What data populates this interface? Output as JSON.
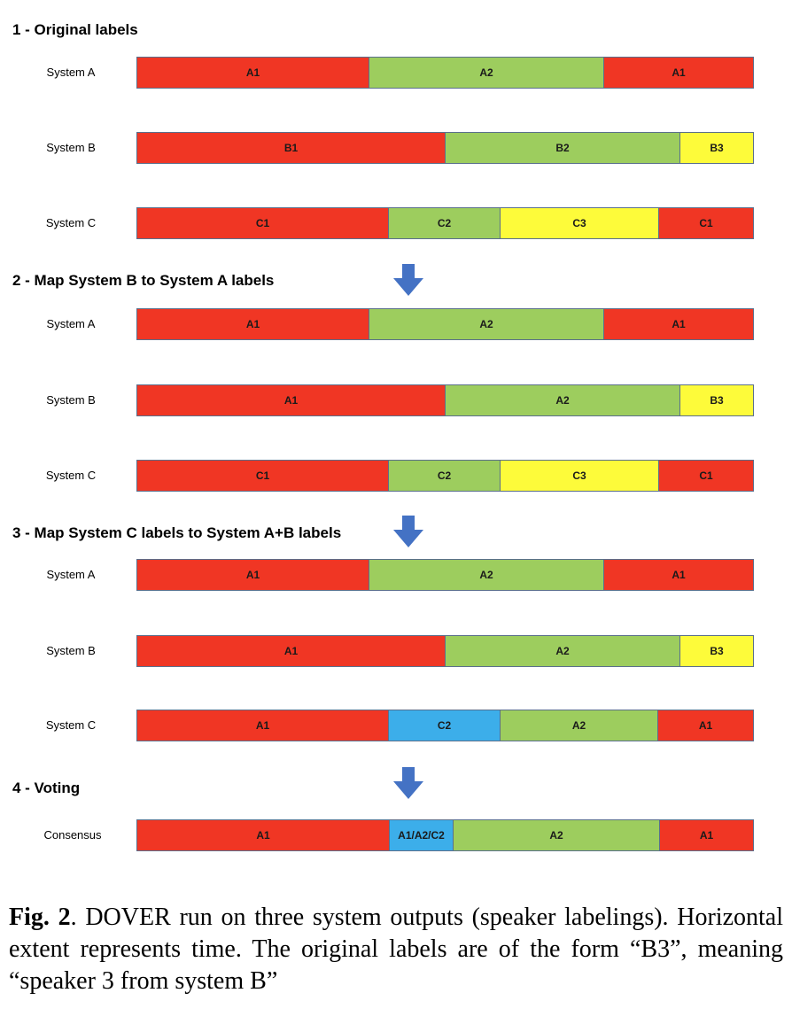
{
  "colors": {
    "red": "#f03624",
    "green": "#9dcd5e",
    "yellow": "#fdfb3a",
    "blue": "#3caeea",
    "arrow": "#4472c4"
  },
  "sections": [
    {
      "title": "1 - Original labels",
      "rows": [
        {
          "label": "System A",
          "segments": [
            {
              "text": "A1",
              "color": "red",
              "fraction": 0.377
            },
            {
              "text": "A2",
              "color": "green",
              "fraction": 0.381
            },
            {
              "text": "A1",
              "color": "red",
              "fraction": 0.242
            }
          ]
        },
        {
          "label": "System B",
          "segments": [
            {
              "text": "B1",
              "color": "red",
              "fraction": 0.501
            },
            {
              "text": "B2",
              "color": "green",
              "fraction": 0.38
            },
            {
              "text": "B3",
              "color": "yellow",
              "fraction": 0.119
            }
          ]
        },
        {
          "label": "System C",
          "segments": [
            {
              "text": "C1",
              "color": "red",
              "fraction": 0.409
            },
            {
              "text": "C2",
              "color": "green",
              "fraction": 0.181
            },
            {
              "text": "C3",
              "color": "yellow",
              "fraction": 0.257
            },
            {
              "text": "C1",
              "color": "red",
              "fraction": 0.153
            }
          ]
        }
      ]
    },
    {
      "title": "2 - Map System B to System A labels",
      "rows": [
        {
          "label": "System A",
          "segments": [
            {
              "text": "A1",
              "color": "red",
              "fraction": 0.377
            },
            {
              "text": "A2",
              "color": "green",
              "fraction": 0.381
            },
            {
              "text": "A1",
              "color": "red",
              "fraction": 0.242
            }
          ]
        },
        {
          "label": "System B",
          "segments": [
            {
              "text": "A1",
              "color": "red",
              "fraction": 0.501
            },
            {
              "text": "A2",
              "color": "green",
              "fraction": 0.38
            },
            {
              "text": "B3",
              "color": "yellow",
              "fraction": 0.119
            }
          ]
        },
        {
          "label": "System C",
          "segments": [
            {
              "text": "C1",
              "color": "red",
              "fraction": 0.409
            },
            {
              "text": "C2",
              "color": "green",
              "fraction": 0.181
            },
            {
              "text": "C3",
              "color": "yellow",
              "fraction": 0.257
            },
            {
              "text": "C1",
              "color": "red",
              "fraction": 0.153
            }
          ]
        }
      ]
    },
    {
      "title": "3 - Map System C labels to System A+B labels",
      "rows": [
        {
          "label": "System A",
          "segments": [
            {
              "text": "A1",
              "color": "red",
              "fraction": 0.377
            },
            {
              "text": "A2",
              "color": "green",
              "fraction": 0.381
            },
            {
              "text": "A1",
              "color": "red",
              "fraction": 0.242
            }
          ]
        },
        {
          "label": "System B",
          "segments": [
            {
              "text": "A1",
              "color": "red",
              "fraction": 0.501
            },
            {
              "text": "A2",
              "color": "green",
              "fraction": 0.38
            },
            {
              "text": "B3",
              "color": "yellow",
              "fraction": 0.119
            }
          ]
        },
        {
          "label": "System C",
          "segments": [
            {
              "text": "A1",
              "color": "red",
              "fraction": 0.409
            },
            {
              "text": "C2",
              "color": "blue",
              "fraction": 0.181
            },
            {
              "text": "A2",
              "color": "green",
              "fraction": 0.255
            },
            {
              "text": "A1",
              "color": "red",
              "fraction": 0.155
            }
          ]
        }
      ]
    },
    {
      "title": "4 - Voting",
      "rows": [
        {
          "label": "Consensus",
          "segments": [
            {
              "text": "A1",
              "color": "red",
              "fraction": 0.411
            },
            {
              "text": "A1/A2/C2",
              "color": "blue",
              "fraction": 0.103
            },
            {
              "text": "A2",
              "color": "green",
              "fraction": 0.334
            },
            {
              "text": "A1",
              "color": "red",
              "fraction": 0.152
            }
          ]
        }
      ]
    }
  ],
  "caption": {
    "fig": "Fig. 2",
    "text": ". DOVER run on three system outputs (speaker labelings). Horizontal extent represents time. The original labels are of the form “B3”, meaning “speaker 3 from system B”"
  }
}
